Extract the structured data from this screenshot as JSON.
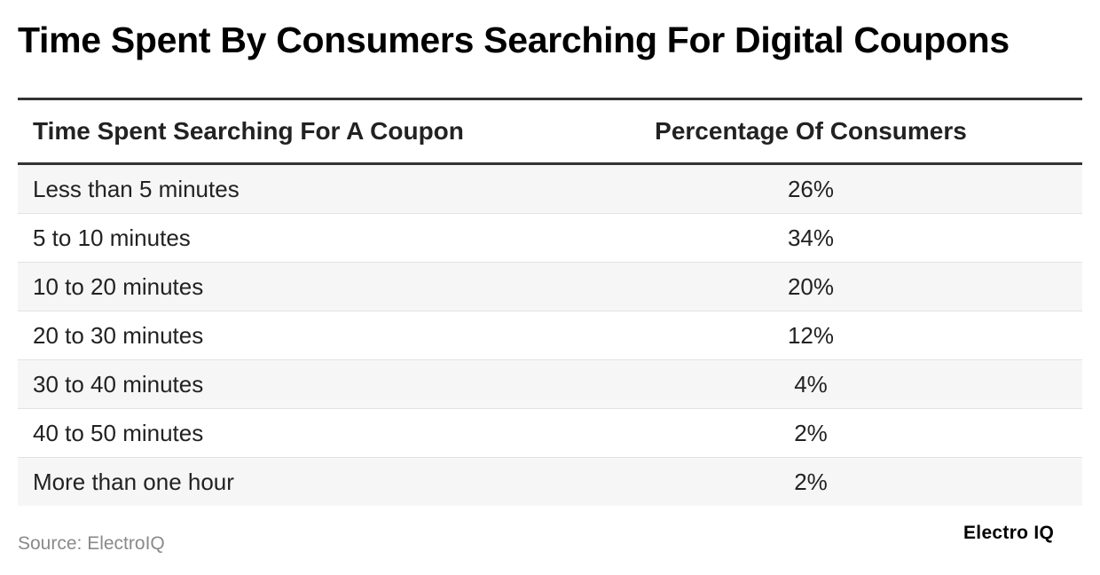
{
  "chart_data": {
    "type": "table",
    "title": "Time Spent By Consumers Searching For Digital Coupons",
    "columns": [
      "Time Spent Searching For A Coupon",
      "Percentage Of Consumers"
    ],
    "rows": [
      {
        "time": "Less than 5 minutes",
        "percent": "26%"
      },
      {
        "time": "5 to 10 minutes",
        "percent": "34%"
      },
      {
        "time": "10 to 20 minutes",
        "percent": "20%"
      },
      {
        "time": "20 to 30 minutes",
        "percent": "12%"
      },
      {
        "time": "30 to 40 minutes",
        "percent": "4%"
      },
      {
        "time": "40 to 50 minutes",
        "percent": "2%"
      },
      {
        "time": "More than one hour",
        "percent": "2%"
      }
    ]
  },
  "footer": {
    "source": "Source: ElectroIQ",
    "brand": "Electro IQ"
  }
}
